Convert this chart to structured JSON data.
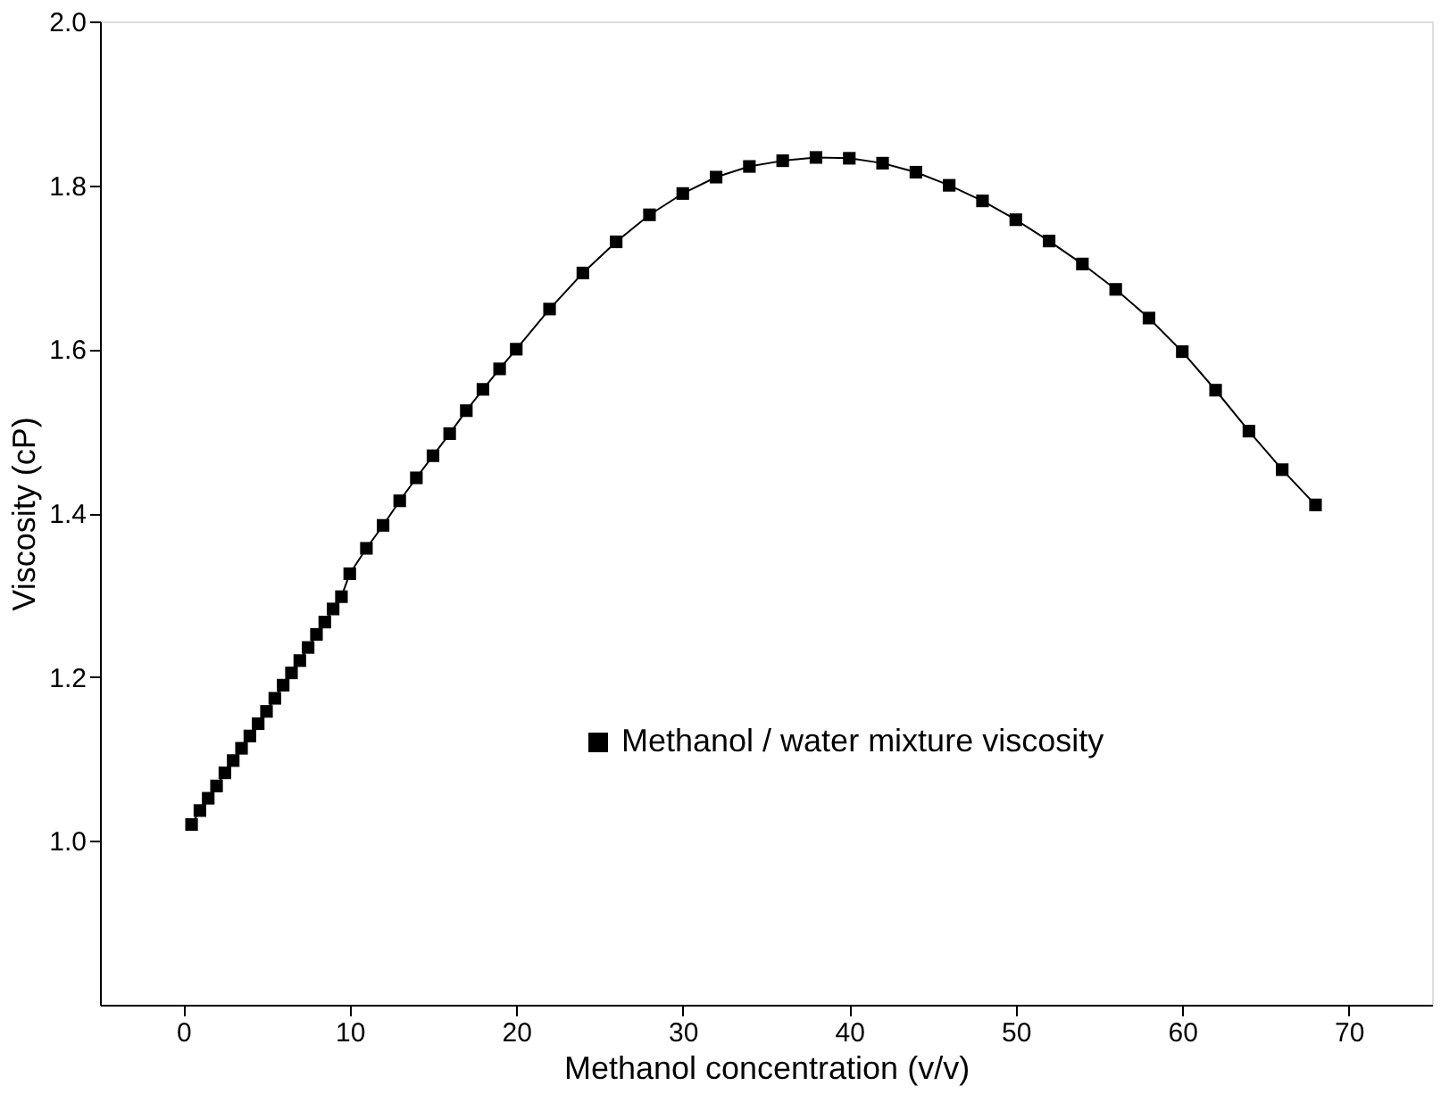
{
  "chart_data": {
    "type": "line",
    "xlabel": "Methanol concentration (v/v)",
    "ylabel": "Viscosity (cP)",
    "xlim": [
      -5,
      75
    ],
    "xticks": [
      0,
      10,
      20,
      30,
      40,
      50,
      60,
      70
    ],
    "ylim": [
      0.8,
      2.0
    ],
    "yticks": [
      {
        "value": 1,
        "label": "1.0"
      },
      1.2,
      1.4,
      1.6,
      1.8,
      {
        "value": 2,
        "label": "2.0"
      }
    ],
    "marker": "square",
    "line_style": "solid",
    "legend": "right",
    "grid": false,
    "series": [
      {
        "name": "Methanol / water mixture viscosity",
        "color": "#000000",
        "x": [
          0.5,
          1,
          1.5,
          2,
          2.5,
          3,
          3.5,
          4,
          4.5,
          5,
          5.5,
          6,
          6.5,
          7,
          7.5,
          8,
          8.5,
          9,
          9.5,
          10,
          11,
          12,
          13,
          14,
          15,
          16,
          17,
          18,
          19,
          20,
          22,
          24,
          26,
          28,
          30,
          32,
          34,
          36,
          38,
          40,
          42,
          44,
          46,
          48,
          50,
          52,
          54,
          56,
          58,
          60,
          62,
          64,
          66,
          68
        ],
        "values": [
          1.02,
          1.037,
          1.052,
          1.067,
          1.083,
          1.098,
          1.113,
          1.128,
          1.143,
          1.158,
          1.174,
          1.19,
          1.205,
          1.22,
          1.236,
          1.252,
          1.267,
          1.283,
          1.298,
          1.326,
          1.357,
          1.385,
          1.415,
          1.443,
          1.47,
          1.497,
          1.525,
          1.551,
          1.576,
          1.6,
          1.649,
          1.693,
          1.731,
          1.764,
          1.79,
          1.81,
          1.823,
          1.83,
          1.834,
          1.833,
          1.827,
          1.816,
          1.8,
          1.781,
          1.758,
          1.732,
          1.704,
          1.673,
          1.638,
          1.597,
          1.55,
          1.5,
          1.453,
          1.41
        ]
      }
    ]
  }
}
